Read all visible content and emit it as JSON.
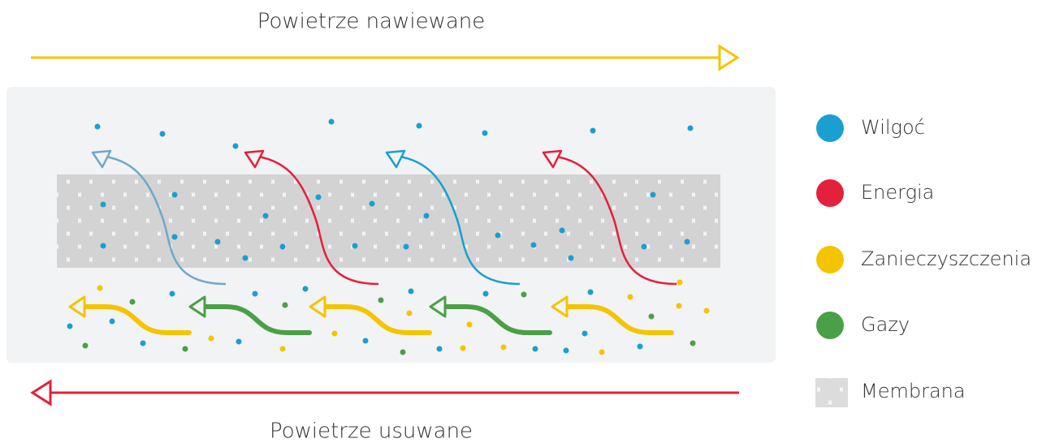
{
  "header": {
    "top_label": "Powietrze nawiewane",
    "bottom_label": "Powietrze usuwane"
  },
  "legend": {
    "items": [
      {
        "label": "Wilgoć"
      },
      {
        "label": "Energia"
      },
      {
        "label": "Zanieczyszczenia"
      },
      {
        "label": "Gazy"
      },
      {
        "label": "Membrana"
      }
    ]
  }
}
